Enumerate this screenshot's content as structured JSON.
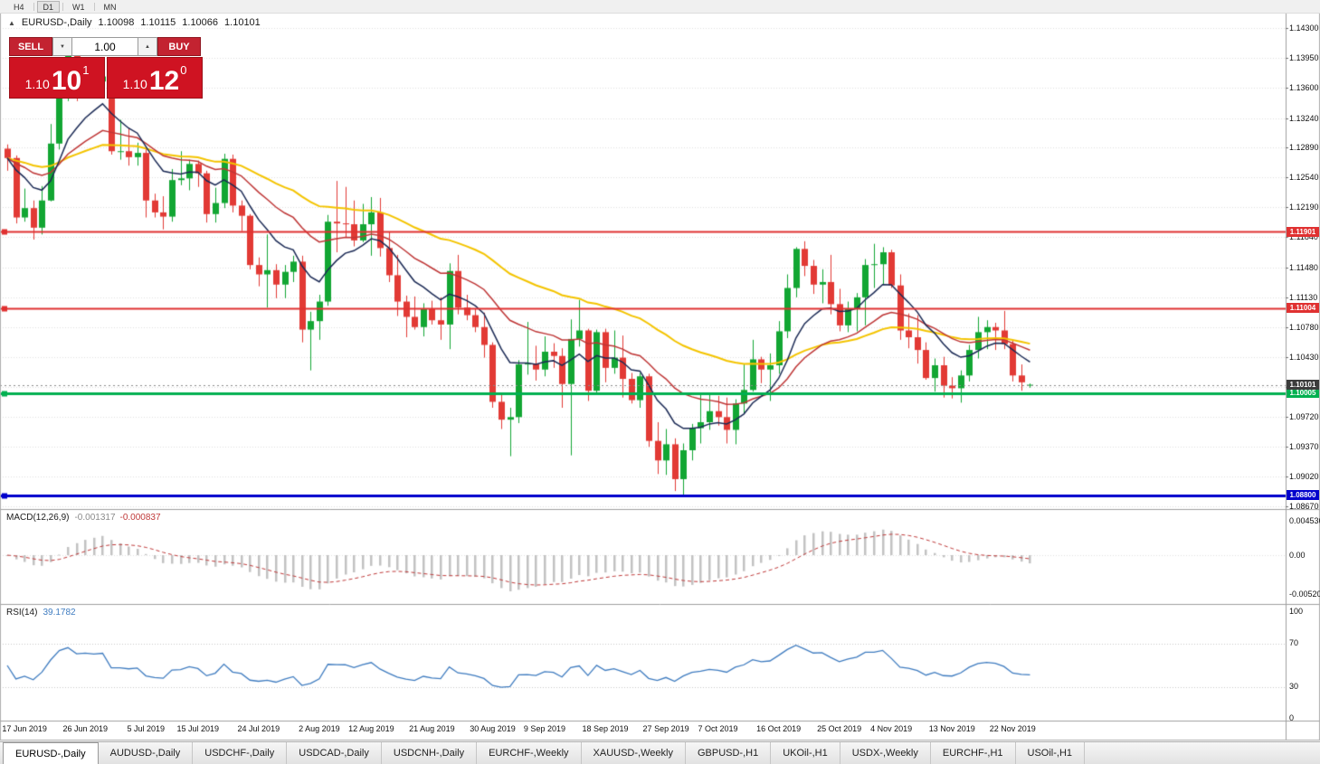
{
  "toolbar": {
    "timeframes": [
      {
        "label": "H4",
        "active": false
      },
      {
        "label": "D1",
        "active": true
      },
      {
        "label": "W1",
        "active": false
      },
      {
        "label": "MN",
        "active": false
      }
    ]
  },
  "chart_header": {
    "collapse_icon": "▲",
    "symbol_label": "EURUSD-,Daily",
    "ohlc": {
      "open": "1.10098",
      "high": "1.10115",
      "low": "1.10066",
      "close": "1.10101"
    }
  },
  "trade_widget": {
    "sell_label": "SELL",
    "buy_label": "BUY",
    "volume": "1.00",
    "spinner_down_icon": "▼",
    "spinner_up_icon": "▲",
    "sell_price": {
      "prefix": "1.10",
      "big": "10",
      "sup": "1"
    },
    "buy_price": {
      "prefix": "1.10",
      "big": "12",
      "sup": "0"
    }
  },
  "chart_data": {
    "type": "candlestick",
    "symbol": "EURUSD-",
    "timeframe": "Daily",
    "price_axis": {
      "labels": [
        "1.14300",
        "1.13950",
        "1.13600",
        "1.13240",
        "1.12890",
        "1.12540",
        "1.12190",
        "1.11840",
        "1.11480",
        "1.11130",
        "1.10780",
        "1.10430",
        "1.10080",
        "1.09720",
        "1.09370",
        "1.09020",
        "1.08670"
      ],
      "top_value": 1.143,
      "bottom_value": 1.0867
    },
    "x_ticks": [
      {
        "label": "17 Jun 2019",
        "index": 2
      },
      {
        "label": "26 Jun 2019",
        "index": 9
      },
      {
        "label": "5 Jul 2019",
        "index": 16
      },
      {
        "label": "15 Jul 2019",
        "index": 22
      },
      {
        "label": "24 Jul 2019",
        "index": 29
      },
      {
        "label": "2 Aug 2019",
        "index": 36
      },
      {
        "label": "12 Aug 2019",
        "index": 42
      },
      {
        "label": "21 Aug 2019",
        "index": 49
      },
      {
        "label": "30 Aug 2019",
        "index": 56
      },
      {
        "label": "9 Sep 2019",
        "index": 62
      },
      {
        "label": "18 Sep 2019",
        "index": 69
      },
      {
        "label": "27 Sep 2019",
        "index": 76
      },
      {
        "label": "7 Oct 2019",
        "index": 82
      },
      {
        "label": "16 Oct 2019",
        "index": 89
      },
      {
        "label": "25 Oct 2019",
        "index": 96
      },
      {
        "label": "4 Nov 2019",
        "index": 102
      },
      {
        "label": "13 Nov 2019",
        "index": 109
      },
      {
        "label": "22 Nov 2019",
        "index": 116
      }
    ],
    "candles": [
      [
        1.1288,
        1.1293,
        1.1262,
        1.1277
      ],
      [
        1.1277,
        1.128,
        1.12,
        1.1207
      ],
      [
        1.1207,
        1.1241,
        1.1202,
        1.1218
      ],
      [
        1.1218,
        1.1227,
        1.1181,
        1.1195
      ],
      [
        1.1195,
        1.1244,
        1.1187,
        1.1227
      ],
      [
        1.1227,
        1.1317,
        1.1226,
        1.1294
      ],
      [
        1.1294,
        1.1378,
        1.1287,
        1.1369
      ],
      [
        1.1369,
        1.1403,
        1.1344,
        1.1399
      ],
      [
        1.1399,
        1.1412,
        1.1344,
        1.1365
      ],
      [
        1.1365,
        1.1391,
        1.1348,
        1.1372
      ],
      [
        1.1372,
        1.139,
        1.1351,
        1.1367
      ],
      [
        1.1367,
        1.1394,
        1.1351,
        1.1373
      ],
      [
        1.1365,
        1.1368,
        1.1281,
        1.1285
      ],
      [
        1.1285,
        1.1322,
        1.1275,
        1.1285
      ],
      [
        1.1285,
        1.1312,
        1.1268,
        1.1278
      ],
      [
        1.1278,
        1.1295,
        1.1268,
        1.1283
      ],
      [
        1.1283,
        1.1289,
        1.1207,
        1.1227
      ],
      [
        1.1227,
        1.1235,
        1.1207,
        1.1213
      ],
      [
        1.1213,
        1.1232,
        1.1193,
        1.1208
      ],
      [
        1.1208,
        1.1264,
        1.1202,
        1.1251
      ],
      [
        1.1251,
        1.1285,
        1.1245,
        1.1253
      ],
      [
        1.1253,
        1.1275,
        1.1239,
        1.127
      ],
      [
        1.127,
        1.1274,
        1.1243,
        1.1259
      ],
      [
        1.1259,
        1.1262,
        1.1201,
        1.1211
      ],
      [
        1.1211,
        1.1242,
        1.1201,
        1.1224
      ],
      [
        1.1224,
        1.1282,
        1.1218,
        1.1276
      ],
      [
        1.1276,
        1.1281,
        1.1213,
        1.1221
      ],
      [
        1.1221,
        1.1227,
        1.1191,
        1.1209
      ],
      [
        1.1209,
        1.1211,
        1.1146,
        1.1151
      ],
      [
        1.1151,
        1.116,
        1.1126,
        1.114
      ],
      [
        1.114,
        1.1187,
        1.1101,
        1.1145
      ],
      [
        1.1145,
        1.1152,
        1.1112,
        1.1128
      ],
      [
        1.1128,
        1.1151,
        1.1112,
        1.1143
      ],
      [
        1.1143,
        1.1162,
        1.1131,
        1.1155
      ],
      [
        1.1155,
        1.1162,
        1.106,
        1.1075
      ],
      [
        1.1075,
        1.1096,
        1.1027,
        1.1085
      ],
      [
        1.1085,
        1.1116,
        1.1063,
        1.1108
      ],
      [
        1.1108,
        1.121,
        1.1103,
        1.1202
      ],
      [
        1.1202,
        1.125,
        1.1166,
        1.12
      ],
      [
        1.12,
        1.1243,
        1.1184,
        1.1199
      ],
      [
        1.1199,
        1.1227,
        1.1173,
        1.118
      ],
      [
        1.118,
        1.1223,
        1.1178,
        1.1199
      ],
      [
        1.1199,
        1.1231,
        1.1162,
        1.1213
      ],
      [
        1.1213,
        1.123,
        1.1161,
        1.1171
      ],
      [
        1.1171,
        1.119,
        1.1131,
        1.1139
      ],
      [
        1.1139,
        1.1163,
        1.1091,
        1.1108
      ],
      [
        1.1108,
        1.1115,
        1.1066,
        1.109
      ],
      [
        1.109,
        1.1114,
        1.1075,
        1.1078
      ],
      [
        1.1078,
        1.1106,
        1.1067,
        1.1099
      ],
      [
        1.1099,
        1.1109,
        1.1081,
        1.1086
      ],
      [
        1.1086,
        1.1113,
        1.1063,
        1.1081
      ],
      [
        1.1081,
        1.1153,
        1.1052,
        1.1144
      ],
      [
        1.1144,
        1.1163,
        1.1093,
        1.1101
      ],
      [
        1.1101,
        1.1116,
        1.1086,
        1.1092
      ],
      [
        1.1092,
        1.1099,
        1.1072,
        1.1078
      ],
      [
        1.1078,
        1.1095,
        1.1042,
        1.1057
      ],
      [
        1.1057,
        1.106,
        1.0983,
        1.099
      ],
      [
        1.099,
        1.0998,
        1.0958,
        1.0969
      ],
      [
        1.0969,
        1.0983,
        1.0926,
        1.0972
      ],
      [
        1.0972,
        1.1039,
        1.0965,
        1.1034
      ],
      [
        1.1034,
        1.1084,
        1.1022,
        1.1035
      ],
      [
        1.1035,
        1.1056,
        1.1015,
        1.1028
      ],
      [
        1.1028,
        1.1067,
        1.102,
        1.1049
      ],
      [
        1.1049,
        1.1059,
        1.103,
        1.1044
      ],
      [
        1.1044,
        1.1053,
        1.0983,
        1.1011
      ],
      [
        1.1011,
        1.1087,
        1.0927,
        1.1064
      ],
      [
        1.1064,
        1.111,
        1.1055,
        1.1074
      ],
      [
        1.1074,
        1.1076,
        1.0991,
        1.1003
      ],
      [
        1.1003,
        1.1075,
        1.0998,
        1.1072
      ],
      [
        1.1072,
        1.1076,
        1.1013,
        1.103
      ],
      [
        1.103,
        1.1074,
        1.1023,
        1.1042
      ],
      [
        1.1042,
        1.1068,
        1.0995,
        1.1017
      ],
      [
        1.1017,
        1.1024,
        1.0988,
        1.0992
      ],
      [
        1.0992,
        1.1024,
        1.0983,
        1.102
      ],
      [
        1.102,
        1.1023,
        1.0937,
        1.0944
      ],
      [
        1.0944,
        1.0966,
        1.0905,
        1.0921
      ],
      [
        1.0921,
        1.0958,
        1.0904,
        1.094
      ],
      [
        1.094,
        1.0947,
        1.0885,
        1.0899
      ],
      [
        1.0899,
        1.0941,
        1.0879,
        1.0933
      ],
      [
        1.0933,
        1.0964,
        1.0921,
        1.0959
      ],
      [
        1.0959,
        1.0999,
        1.0941,
        1.0966
      ],
      [
        1.0966,
        1.0999,
        1.0957,
        1.0979
      ],
      [
        1.0979,
        1.0997,
        1.0962,
        1.0972
      ],
      [
        1.0972,
        1.0995,
        1.0941,
        1.0957
      ],
      [
        1.0957,
        1.0993,
        1.094,
        1.0988
      ],
      [
        1.0988,
        1.1034,
        1.0976,
        1.1004
      ],
      [
        1.1004,
        1.1063,
        1.1002,
        1.104
      ],
      [
        1.104,
        1.1043,
        1.1012,
        1.1028
      ],
      [
        1.1028,
        1.1047,
        1.0991,
        1.1033
      ],
      [
        1.1033,
        1.1085,
        1.1023,
        1.1073
      ],
      [
        1.1073,
        1.114,
        1.1065,
        1.1124
      ],
      [
        1.1124,
        1.1172,
        1.1113,
        1.117
      ],
      [
        1.117,
        1.1179,
        1.1138,
        1.115
      ],
      [
        1.115,
        1.1157,
        1.1117,
        1.1128
      ],
      [
        1.1128,
        1.1146,
        1.1106,
        1.1131
      ],
      [
        1.1131,
        1.1163,
        1.1093,
        1.1105
      ],
      [
        1.1105,
        1.1123,
        1.1073,
        1.108
      ],
      [
        1.108,
        1.1108,
        1.1072,
        1.1099
      ],
      [
        1.1099,
        1.1118,
        1.1073,
        1.1113
      ],
      [
        1.1113,
        1.1158,
        1.108,
        1.1151
      ],
      [
        1.1151,
        1.1176,
        1.1124,
        1.1152
      ],
      [
        1.1152,
        1.1172,
        1.1128,
        1.1166
      ],
      [
        1.1166,
        1.1169,
        1.1124,
        1.1127
      ],
      [
        1.1127,
        1.114,
        1.1063,
        1.1074
      ],
      [
        1.1074,
        1.1094,
        1.1053,
        1.1066
      ],
      [
        1.1066,
        1.1092,
        1.1035,
        1.1051
      ],
      [
        1.1051,
        1.106,
        1.1016,
        1.1018
      ],
      [
        1.1018,
        1.1041,
        1.1002,
        1.1033
      ],
      [
        1.1033,
        1.1043,
        1.0995,
        1.1009
      ],
      [
        1.1009,
        1.1019,
        1.0994,
        1.1006
      ],
      [
        1.1006,
        1.1027,
        1.0989,
        1.1021
      ],
      [
        1.1021,
        1.1057,
        1.1014,
        1.1051
      ],
      [
        1.1051,
        1.109,
        1.1041,
        1.1072
      ],
      [
        1.1072,
        1.1086,
        1.1052,
        1.1078
      ],
      [
        1.1078,
        1.1083,
        1.1051,
        1.1074
      ],
      [
        1.1074,
        1.1097,
        1.1052,
        1.1058
      ],
      [
        1.1058,
        1.1062,
        1.1014,
        1.1021
      ],
      [
        1.1021,
        1.1034,
        1.1003,
        1.1013
      ],
      [
        1.10098,
        1.10115,
        1.10066,
        1.10101
      ]
    ],
    "horizontal_lines": [
      {
        "price": 1.11901,
        "label": "1.11901",
        "color": "#e03131",
        "width": 2
      },
      {
        "price": 1.11004,
        "label": "1.11004",
        "color": "#e03131",
        "width": 2
      },
      {
        "price": 1.10005,
        "label": "1.10005",
        "color": "#00b050",
        "width": 3
      },
      {
        "price": 1.088,
        "label": "1.08800",
        "color": "#0000cc",
        "width": 3
      }
    ],
    "bid_line": {
      "price": 1.10101,
      "label": "1.10101",
      "color": "#3c3c3c"
    },
    "moving_averages": [
      {
        "name": "ma-slow",
        "period": 45,
        "color": "#f4c400",
        "width": 2
      },
      {
        "name": "ma-mid",
        "period": 21,
        "color": "#bf3636",
        "width": 1.5
      },
      {
        "name": "ma-fast",
        "period": 9,
        "color": "#1b2a55",
        "width": 1.5
      }
    ],
    "colors": {
      "up": "#12a633",
      "down": "#e23a35",
      "grid": "#e0e0e0",
      "background": "#ffffff"
    }
  },
  "macd": {
    "label": "MACD(12,26,9)",
    "value_main": "-0.001317",
    "value_signal": "-0.000837",
    "fast": 12,
    "slow": 26,
    "signal": 9,
    "axis_labels": [
      "0.004536",
      "0.00",
      "-0.00520"
    ],
    "histogram_color": "#c2c2c2",
    "signal_color": "#c03a3a"
  },
  "rsi": {
    "label": "RSI(14)",
    "value": "39.1782",
    "period": 14,
    "levels": [
      70,
      30
    ],
    "axis_labels": [
      "100",
      "70",
      "30",
      "0"
    ],
    "line_color": "#3f7cc0"
  },
  "tabs": [
    {
      "label": "EURUSD-,Daily",
      "active": true
    },
    {
      "label": "AUDUSD-,Daily",
      "active": false
    },
    {
      "label": "USDCHF-,Daily",
      "active": false
    },
    {
      "label": "USDCAD-,Daily",
      "active": false
    },
    {
      "label": "USDCNH-,Daily",
      "active": false
    },
    {
      "label": "EURCHF-,Weekly",
      "active": false
    },
    {
      "label": "XAUUSD-,Weekly",
      "active": false
    },
    {
      "label": "GBPUSD-,H1",
      "active": false
    },
    {
      "label": "UKOil-,H1",
      "active": false
    },
    {
      "label": "USDX-,Weekly",
      "active": false
    },
    {
      "label": "EURCHF-,H1",
      "active": false
    },
    {
      "label": "USOil-,H1",
      "active": false
    }
  ]
}
